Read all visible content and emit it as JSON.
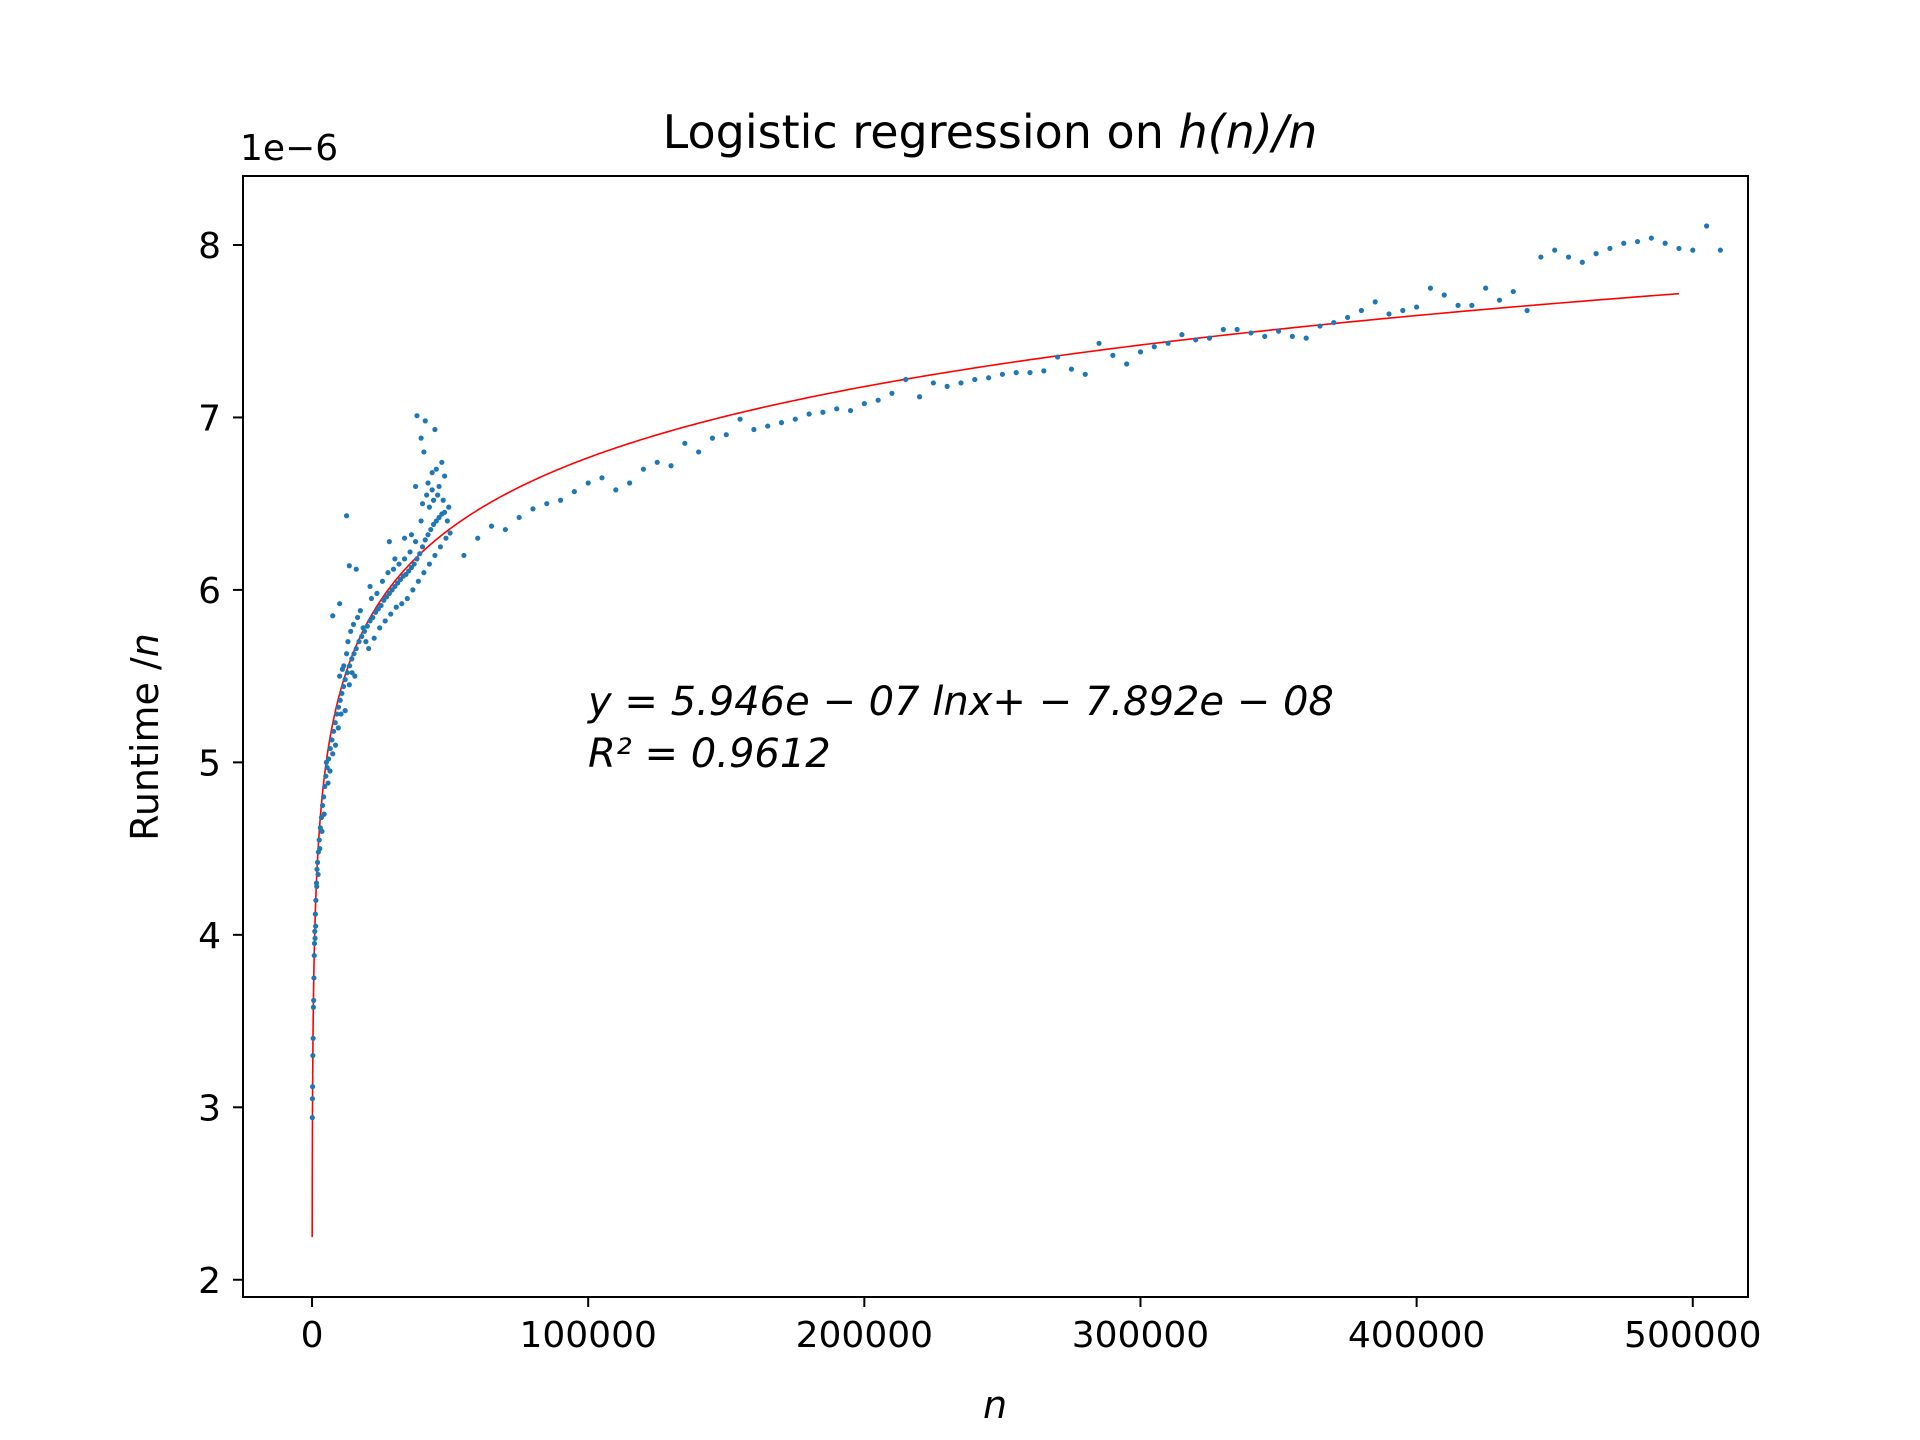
{
  "chart_data": {
    "type": "scatter",
    "title_prefix": "Logistic regression on ",
    "title_math": "h(n)/n",
    "xlabel": "n",
    "ylabel_prefix": "Runtime /",
    "ylabel_math": "n",
    "y_offset_label": "1e−6",
    "xlim": [
      -25000,
      520000
    ],
    "ylim": [
      1.9,
      8.4
    ],
    "x_ticks": [
      0,
      100000,
      200000,
      300000,
      400000,
      500000
    ],
    "x_tick_labels": [
      "0",
      "100000",
      "200000",
      "300000",
      "400000",
      "500000"
    ],
    "y_ticks": [
      2,
      3,
      4,
      5,
      6,
      7,
      8
    ],
    "y_tick_labels": [
      "2",
      "3",
      "4",
      "5",
      "6",
      "7",
      "8"
    ],
    "grid": false,
    "legend": "none",
    "annotation": {
      "equation": "y = 5.946e − 07 lnx+ − 7.892e − 08",
      "r2": "R² = 0.9612"
    },
    "fit": {
      "a": 0.5946,
      "b": -0.07892,
      "x_start": 50,
      "x_end": 495000,
      "color": "#ff0000"
    },
    "scatter_color": "#1f77b4",
    "series_dense": [
      [
        100,
        2.94
      ],
      [
        150,
        3.05
      ],
      [
        200,
        3.12
      ],
      [
        300,
        3.3
      ],
      [
        400,
        3.4
      ],
      [
        500,
        3.58
      ],
      [
        600,
        3.62
      ],
      [
        700,
        3.75
      ],
      [
        800,
        3.88
      ],
      [
        900,
        3.95
      ],
      [
        1000,
        4.02
      ],
      [
        1200,
        4.12
      ],
      [
        1400,
        4.2
      ],
      [
        1600,
        4.3
      ],
      [
        1800,
        4.38
      ],
      [
        2000,
        4.42
      ],
      [
        2300,
        4.48
      ],
      [
        2600,
        4.55
      ],
      [
        3000,
        4.62
      ],
      [
        3400,
        4.68
      ],
      [
        3800,
        4.75
      ],
      [
        4200,
        4.8
      ],
      [
        4600,
        4.86
      ],
      [
        5000,
        4.92
      ],
      [
        5500,
        4.97
      ],
      [
        6000,
        5.02
      ],
      [
        6600,
        5.08
      ],
      [
        7200,
        5.13
      ],
      [
        7800,
        5.18
      ],
      [
        8400,
        5.23
      ],
      [
        9000,
        5.28
      ],
      [
        9600,
        5.32
      ],
      [
        10200,
        5.36
      ],
      [
        10800,
        5.4
      ],
      [
        11400,
        5.44
      ],
      [
        12000,
        5.48
      ],
      [
        12800,
        5.52
      ],
      [
        13600,
        5.56
      ],
      [
        14400,
        5.6
      ],
      [
        15200,
        5.63
      ],
      [
        16000,
        5.66
      ],
      [
        17000,
        5.7
      ],
      [
        18000,
        5.73
      ],
      [
        19000,
        5.76
      ],
      [
        20000,
        5.79
      ],
      [
        21000,
        5.82
      ],
      [
        22000,
        5.84
      ],
      [
        23000,
        5.87
      ],
      [
        24000,
        5.89
      ],
      [
        25000,
        5.91
      ],
      [
        26000,
        5.94
      ],
      [
        27000,
        5.96
      ],
      [
        28000,
        5.98
      ],
      [
        29000,
        6.0
      ],
      [
        30000,
        6.02
      ],
      [
        31000,
        6.04
      ],
      [
        32000,
        6.06
      ],
      [
        33000,
        6.08
      ],
      [
        34000,
        6.09
      ],
      [
        35000,
        6.11
      ],
      [
        36000,
        6.13
      ],
      [
        37000,
        6.15
      ],
      [
        38000,
        6.18
      ],
      [
        39000,
        6.21
      ],
      [
        40000,
        6.25
      ],
      [
        41000,
        6.29
      ],
      [
        42000,
        6.32
      ],
      [
        43000,
        6.35
      ],
      [
        44000,
        6.38
      ],
      [
        45000,
        6.4
      ],
      [
        46000,
        6.42
      ],
      [
        47000,
        6.44
      ],
      [
        48000,
        6.45
      ],
      [
        49000,
        6.4
      ],
      [
        50000,
        6.33
      ],
      [
        11500,
        5.56
      ],
      [
        12500,
        5.63
      ],
      [
        13000,
        5.7
      ],
      [
        14000,
        5.76
      ],
      [
        15000,
        5.8
      ],
      [
        16500,
        5.84
      ],
      [
        17500,
        5.88
      ],
      [
        18500,
        5.78
      ],
      [
        19500,
        5.7
      ],
      [
        20500,
        5.66
      ],
      [
        21500,
        5.95
      ],
      [
        22500,
        5.72
      ],
      [
        23500,
        5.98
      ],
      [
        24500,
        5.78
      ],
      [
        25500,
        6.05
      ],
      [
        26500,
        5.82
      ],
      [
        27500,
        6.1
      ],
      [
        28500,
        5.86
      ],
      [
        29500,
        6.12
      ],
      [
        30500,
        5.9
      ],
      [
        31500,
        6.15
      ],
      [
        32500,
        5.92
      ],
      [
        33500,
        6.18
      ],
      [
        34500,
        5.95
      ],
      [
        35500,
        6.22
      ],
      [
        36500,
        6.0
      ],
      [
        37500,
        6.28
      ],
      [
        38500,
        6.05
      ],
      [
        39500,
        6.4
      ],
      [
        40500,
        6.1
      ],
      [
        41500,
        6.55
      ],
      [
        42500,
        6.15
      ],
      [
        43500,
        6.58
      ],
      [
        44500,
        6.2
      ],
      [
        45500,
        6.55
      ],
      [
        46500,
        6.25
      ],
      [
        47500,
        6.52
      ],
      [
        48500,
        6.3
      ],
      [
        49500,
        6.48
      ],
      [
        10000,
        5.5
      ],
      [
        10500,
        5.28
      ],
      [
        11000,
        5.54
      ],
      [
        12000,
        5.3
      ],
      [
        13500,
        5.45
      ],
      [
        14500,
        5.52
      ],
      [
        15500,
        5.5
      ],
      [
        9500,
        5.2
      ],
      [
        8500,
        5.1
      ],
      [
        7500,
        5.05
      ],
      [
        6500,
        4.95
      ],
      [
        5800,
        4.88
      ],
      [
        5200,
        5.0
      ],
      [
        4400,
        4.7
      ],
      [
        3600,
        4.6
      ],
      [
        2800,
        4.5
      ],
      [
        2200,
        4.35
      ],
      [
        1700,
        4.28
      ],
      [
        1300,
        4.05
      ],
      [
        1100,
        3.98
      ]
    ],
    "series_outliers": [
      [
        12500,
        6.43
      ],
      [
        13500,
        6.14
      ],
      [
        16000,
        6.12
      ],
      [
        21000,
        6.02
      ],
      [
        28000,
        6.28
      ],
      [
        30000,
        6.18
      ],
      [
        33500,
        6.3
      ],
      [
        36000,
        6.32
      ],
      [
        37500,
        6.6
      ],
      [
        38000,
        7.01
      ],
      [
        39500,
        6.88
      ],
      [
        40500,
        6.8
      ],
      [
        41000,
        6.98
      ],
      [
        42000,
        6.62
      ],
      [
        43500,
        6.68
      ],
      [
        44500,
        6.93
      ],
      [
        45000,
        6.7
      ],
      [
        46000,
        6.6
      ],
      [
        47000,
        6.74
      ],
      [
        48000,
        6.66
      ],
      [
        40000,
        6.5
      ],
      [
        42500,
        6.48
      ],
      [
        44000,
        6.52
      ],
      [
        7500,
        5.85
      ],
      [
        10000,
        5.92
      ]
    ],
    "series_sparse": [
      [
        55000,
        6.2
      ],
      [
        60000,
        6.3
      ],
      [
        65000,
        6.37
      ],
      [
        70000,
        6.35
      ],
      [
        75000,
        6.42
      ],
      [
        80000,
        6.47
      ],
      [
        85000,
        6.5
      ],
      [
        90000,
        6.52
      ],
      [
        95000,
        6.57
      ],
      [
        100000,
        6.62
      ],
      [
        105000,
        6.65
      ],
      [
        110000,
        6.58
      ],
      [
        115000,
        6.62
      ],
      [
        120000,
        6.7
      ],
      [
        125000,
        6.74
      ],
      [
        130000,
        6.72
      ],
      [
        135000,
        6.85
      ],
      [
        140000,
        6.8
      ],
      [
        145000,
        6.88
      ],
      [
        150000,
        6.9
      ],
      [
        155000,
        6.99
      ],
      [
        160000,
        6.93
      ],
      [
        165000,
        6.95
      ],
      [
        170000,
        6.97
      ],
      [
        175000,
        6.99
      ],
      [
        180000,
        7.02
      ],
      [
        185000,
        7.03
      ],
      [
        190000,
        7.05
      ],
      [
        195000,
        7.04
      ],
      [
        200000,
        7.08
      ],
      [
        205000,
        7.1
      ],
      [
        210000,
        7.14
      ],
      [
        215000,
        7.22
      ],
      [
        220000,
        7.12
      ],
      [
        225000,
        7.2
      ],
      [
        230000,
        7.18
      ],
      [
        235000,
        7.2
      ],
      [
        240000,
        7.22
      ],
      [
        245000,
        7.23
      ],
      [
        250000,
        7.25
      ],
      [
        255000,
        7.26
      ],
      [
        260000,
        7.26
      ],
      [
        265000,
        7.27
      ],
      [
        270000,
        7.35
      ],
      [
        275000,
        7.28
      ],
      [
        280000,
        7.25
      ],
      [
        285000,
        7.43
      ],
      [
        290000,
        7.36
      ],
      [
        295000,
        7.31
      ],
      [
        300000,
        7.38
      ],
      [
        305000,
        7.41
      ],
      [
        310000,
        7.43
      ],
      [
        315000,
        7.48
      ],
      [
        320000,
        7.45
      ],
      [
        325000,
        7.46
      ],
      [
        330000,
        7.51
      ],
      [
        335000,
        7.51
      ],
      [
        340000,
        7.49
      ],
      [
        345000,
        7.47
      ],
      [
        350000,
        7.5
      ],
      [
        355000,
        7.47
      ],
      [
        360000,
        7.46
      ],
      [
        365000,
        7.53
      ],
      [
        370000,
        7.55
      ],
      [
        375000,
        7.58
      ],
      [
        380000,
        7.62
      ],
      [
        385000,
        7.67
      ],
      [
        390000,
        7.6
      ],
      [
        395000,
        7.62
      ],
      [
        400000,
        7.64
      ],
      [
        405000,
        7.75
      ],
      [
        410000,
        7.71
      ],
      [
        415000,
        7.65
      ],
      [
        420000,
        7.65
      ],
      [
        425000,
        7.75
      ],
      [
        430000,
        7.68
      ],
      [
        435000,
        7.73
      ],
      [
        440000,
        7.62
      ],
      [
        445000,
        7.93
      ],
      [
        450000,
        7.97
      ],
      [
        455000,
        7.93
      ],
      [
        460000,
        7.9
      ],
      [
        465000,
        7.95
      ],
      [
        470000,
        7.98
      ],
      [
        475000,
        8.01
      ],
      [
        480000,
        8.02
      ],
      [
        485000,
        8.04
      ],
      [
        490000,
        8.01
      ],
      [
        495000,
        7.98
      ],
      [
        500000,
        7.97
      ],
      [
        505000,
        8.11
      ],
      [
        510000,
        7.97
      ]
    ]
  }
}
